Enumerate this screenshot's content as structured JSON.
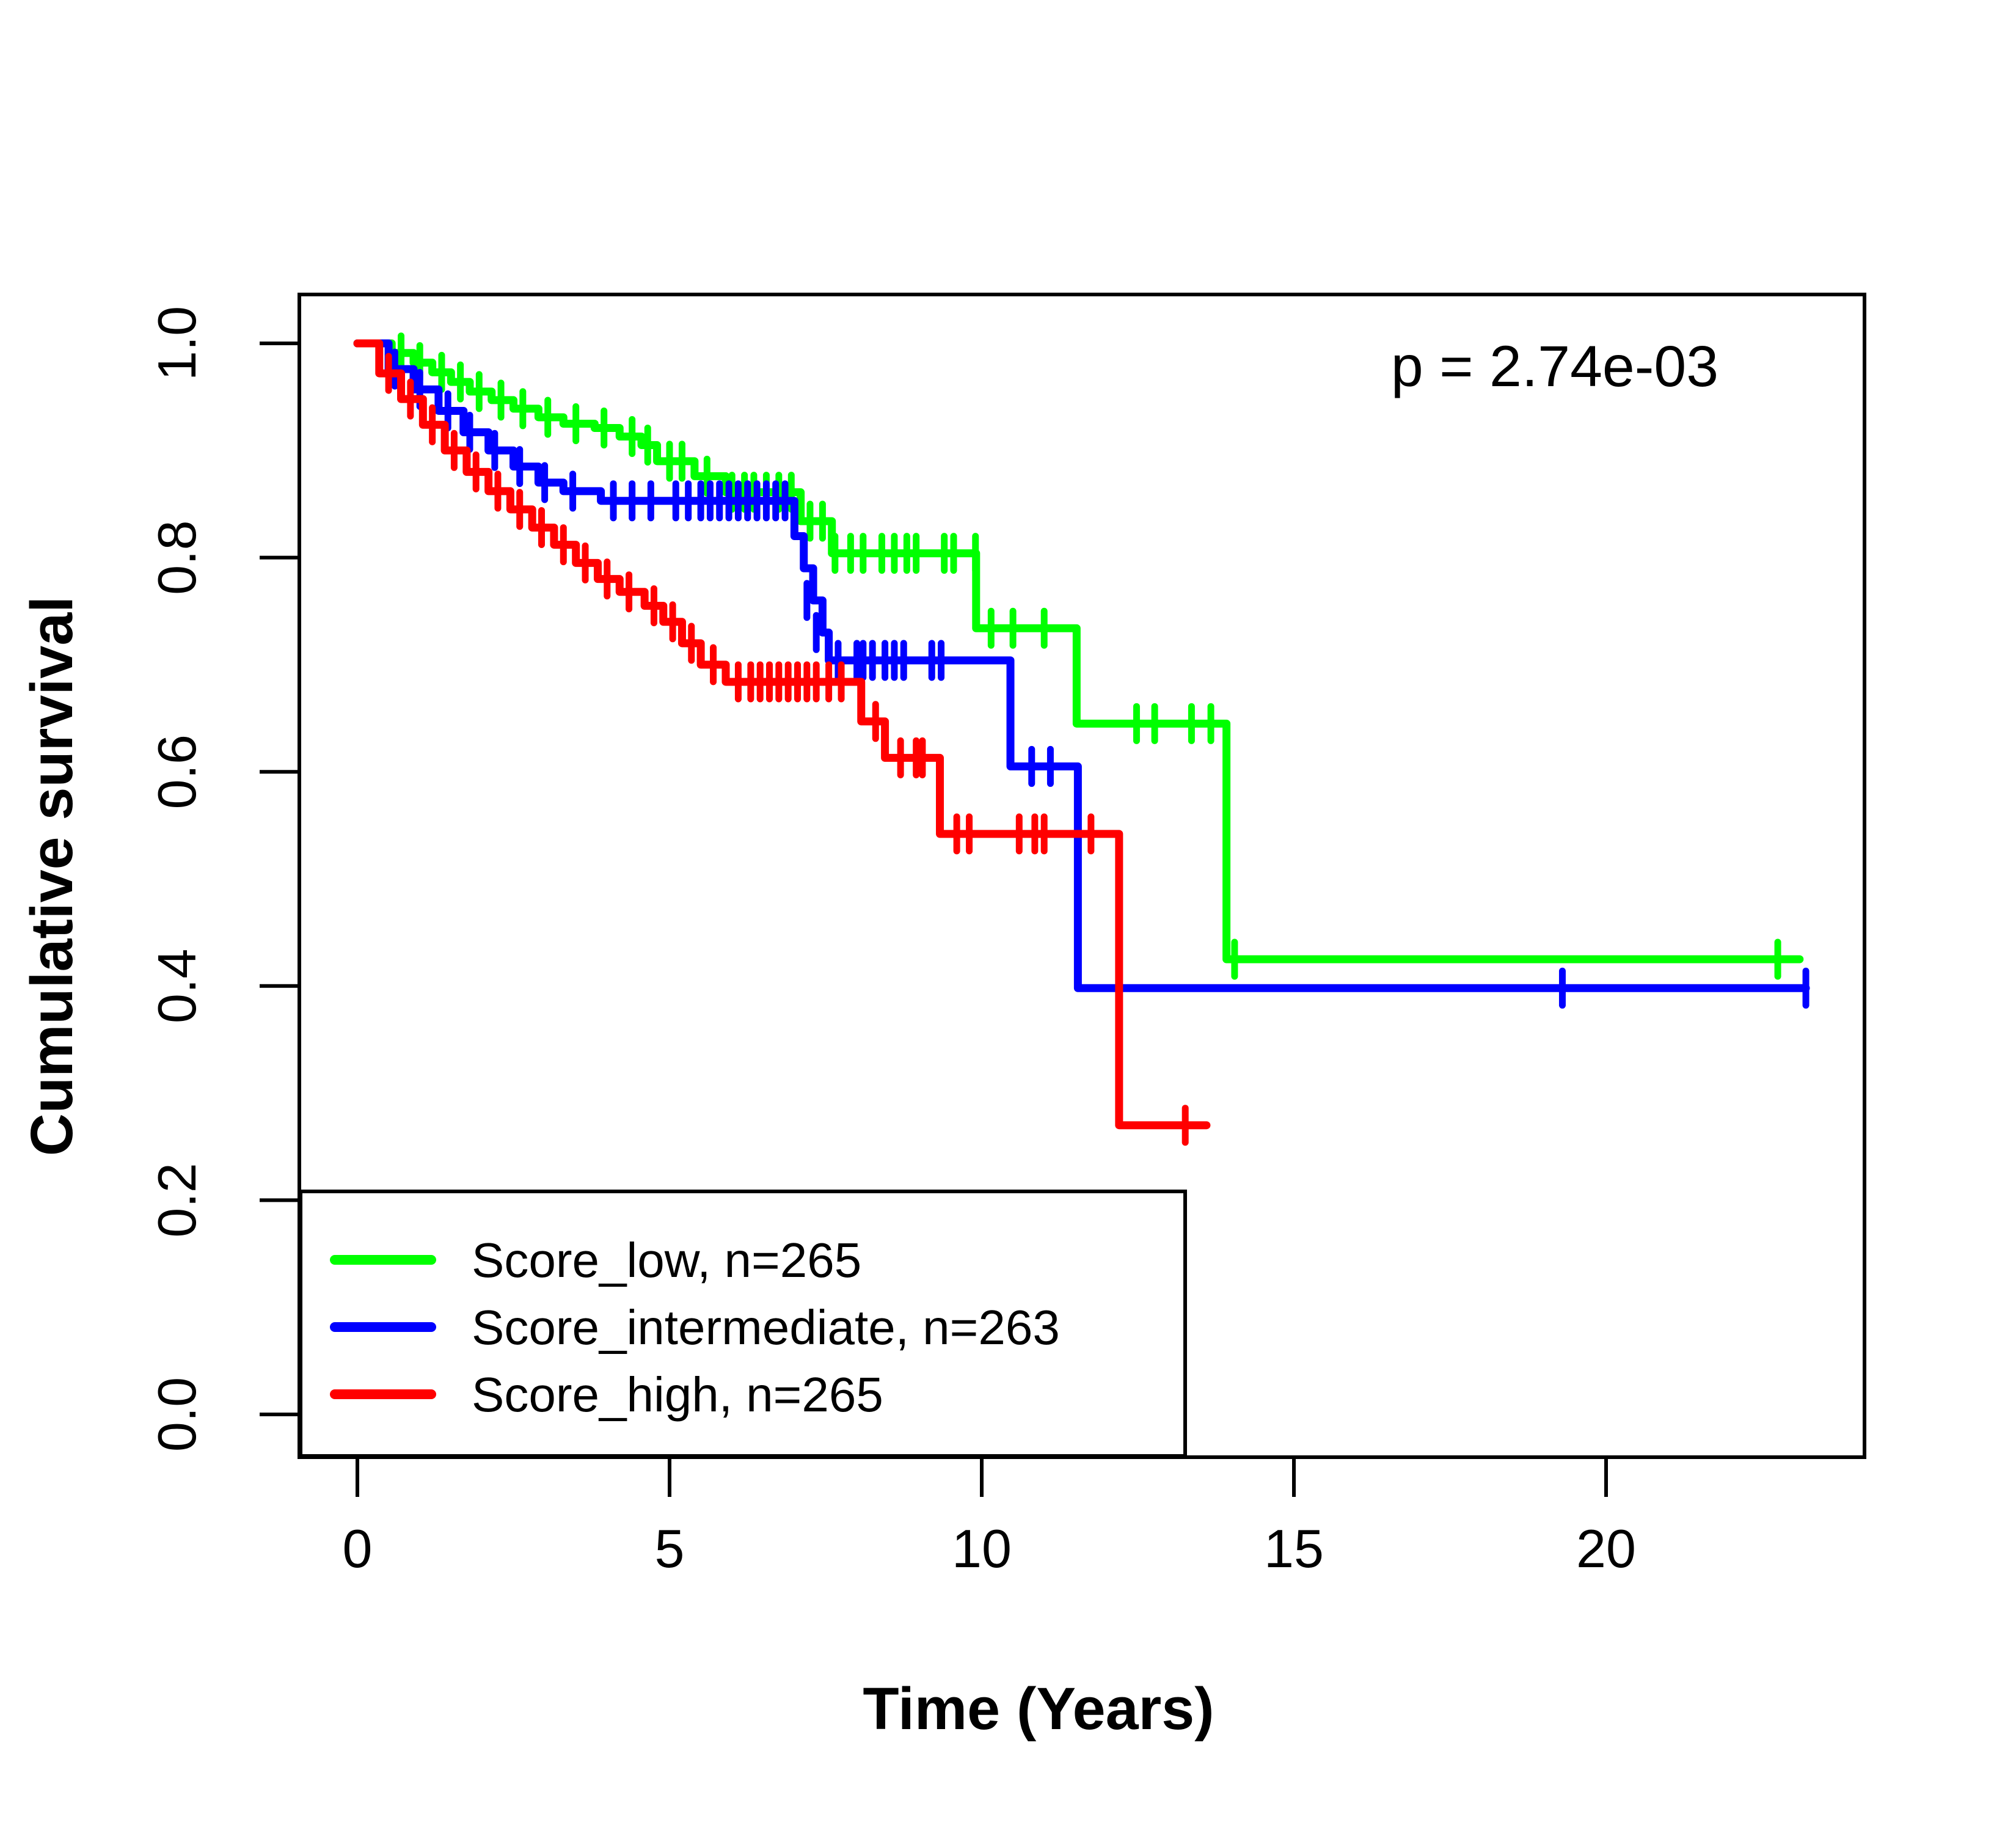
{
  "chart_data": {
    "type": "line",
    "subtype": "kaplan-meier-step",
    "p_value_text": "p = 2.74e-03",
    "xlabel": "Time (Years)",
    "ylabel": "Cumulative survival",
    "x_axis": {
      "ticks": [
        0,
        5,
        10,
        15,
        20
      ],
      "range": [
        0,
        24.1
      ],
      "grid": false
    },
    "y_axis": {
      "tick_labels": [
        "0.0",
        "0.2",
        "0.4",
        "0.6",
        "0.8",
        "1.0"
      ],
      "tick_values": [
        0.0,
        0.2,
        0.4,
        0.6,
        0.8,
        1.0
      ],
      "range": [
        0,
        1
      ],
      "grid": false
    },
    "legend": {
      "position": "bottomleft",
      "entries": [
        {
          "label": "Score_low, n=265",
          "color": "#00FF00"
        },
        {
          "label": "Score_intermediate, n=263",
          "color": "#0000FF"
        },
        {
          "label": "Score_high, n=265",
          "color": "#FF0000"
        }
      ]
    },
    "series": [
      {
        "name": "Score_low",
        "n": 265,
        "color": "#00FF00",
        "steps": [
          [
            0,
            1.0
          ],
          [
            0.55,
            0.991
          ],
          [
            0.9,
            0.982
          ],
          [
            1.2,
            0.973
          ],
          [
            1.5,
            0.964
          ],
          [
            1.8,
            0.955
          ],
          [
            2.15,
            0.947
          ],
          [
            2.5,
            0.939
          ],
          [
            2.9,
            0.931
          ],
          [
            3.3,
            0.925
          ],
          [
            3.8,
            0.921
          ],
          [
            4.2,
            0.913
          ],
          [
            4.55,
            0.905
          ],
          [
            4.8,
            0.89
          ],
          [
            5.4,
            0.876
          ],
          [
            5.9,
            0.861
          ],
          [
            7.1,
            0.834
          ],
          [
            7.6,
            0.804
          ],
          [
            9.91,
            0.734
          ],
          [
            11.52,
            0.645
          ],
          [
            13.92,
            0.425
          ]
        ],
        "end_time": 23.1,
        "end_censor": false,
        "censors": [
          [
            0.7,
            0.991
          ],
          [
            1.0,
            0.982
          ],
          [
            1.35,
            0.973
          ],
          [
            1.65,
            0.964
          ],
          [
            1.95,
            0.955
          ],
          [
            2.3,
            0.947
          ],
          [
            2.65,
            0.939
          ],
          [
            3.05,
            0.931
          ],
          [
            3.5,
            0.925
          ],
          [
            3.95,
            0.921
          ],
          [
            4.4,
            0.913
          ],
          [
            4.65,
            0.905
          ],
          [
            5.0,
            0.89
          ],
          [
            5.2,
            0.89
          ],
          [
            5.6,
            0.876
          ],
          [
            6.0,
            0.861
          ],
          [
            6.2,
            0.861
          ],
          [
            6.35,
            0.861
          ],
          [
            6.55,
            0.861
          ],
          [
            6.75,
            0.861
          ],
          [
            6.95,
            0.861
          ],
          [
            7.25,
            0.834
          ],
          [
            7.45,
            0.834
          ],
          [
            7.65,
            0.804
          ],
          [
            7.9,
            0.804
          ],
          [
            8.1,
            0.804
          ],
          [
            8.4,
            0.804
          ],
          [
            8.6,
            0.804
          ],
          [
            8.8,
            0.804
          ],
          [
            8.95,
            0.804
          ],
          [
            9.4,
            0.804
          ],
          [
            9.55,
            0.804
          ],
          [
            9.9,
            0.804
          ],
          [
            10.15,
            0.734
          ],
          [
            10.5,
            0.734
          ],
          [
            11.0,
            0.734
          ],
          [
            12.48,
            0.645
          ],
          [
            12.77,
            0.645
          ],
          [
            13.36,
            0.645
          ],
          [
            13.67,
            0.645
          ],
          [
            14.05,
            0.425
          ],
          [
            22.75,
            0.425
          ]
        ]
      },
      {
        "name": "Score_intermediate",
        "n": 263,
        "color": "#0000FF",
        "steps": [
          [
            0,
            1.0
          ],
          [
            0.5,
            0.976
          ],
          [
            0.9,
            0.957
          ],
          [
            1.3,
            0.937
          ],
          [
            1.7,
            0.917
          ],
          [
            2.1,
            0.9
          ],
          [
            2.5,
            0.885
          ],
          [
            2.9,
            0.87
          ],
          [
            3.3,
            0.862
          ],
          [
            3.9,
            0.853
          ],
          [
            7.0,
            0.82
          ],
          [
            7.15,
            0.79
          ],
          [
            7.3,
            0.76
          ],
          [
            7.45,
            0.73
          ],
          [
            7.55,
            0.704
          ],
          [
            10.46,
            0.605
          ],
          [
            11.54,
            0.398
          ]
        ],
        "end_time": 23.2,
        "end_censor": true,
        "censors": [
          [
            0.6,
            0.976
          ],
          [
            1.0,
            0.957
          ],
          [
            1.45,
            0.937
          ],
          [
            1.8,
            0.917
          ],
          [
            2.2,
            0.9
          ],
          [
            2.6,
            0.885
          ],
          [
            3.0,
            0.87
          ],
          [
            3.45,
            0.862
          ],
          [
            4.1,
            0.853
          ],
          [
            4.4,
            0.853
          ],
          [
            4.7,
            0.853
          ],
          [
            5.1,
            0.853
          ],
          [
            5.3,
            0.853
          ],
          [
            5.5,
            0.853
          ],
          [
            5.65,
            0.853
          ],
          [
            5.8,
            0.853
          ],
          [
            5.95,
            0.853
          ],
          [
            6.1,
            0.853
          ],
          [
            6.25,
            0.853
          ],
          [
            6.4,
            0.853
          ],
          [
            6.55,
            0.853
          ],
          [
            6.7,
            0.853
          ],
          [
            6.85,
            0.853
          ],
          [
            7.2,
            0.76
          ],
          [
            7.35,
            0.73
          ],
          [
            7.7,
            0.704
          ],
          [
            8.0,
            0.704
          ],
          [
            8.1,
            0.704
          ],
          [
            8.25,
            0.704
          ],
          [
            8.45,
            0.704
          ],
          [
            8.6,
            0.704
          ],
          [
            8.75,
            0.704
          ],
          [
            9.2,
            0.704
          ],
          [
            9.35,
            0.704
          ],
          [
            10.8,
            0.605
          ],
          [
            11.1,
            0.605
          ],
          [
            19.3,
            0.398
          ]
        ]
      },
      {
        "name": "Score_high",
        "n": 265,
        "color": "#FF0000",
        "steps": [
          [
            0,
            1.0
          ],
          [
            0.35,
            0.972
          ],
          [
            0.7,
            0.948
          ],
          [
            1.05,
            0.924
          ],
          [
            1.4,
            0.9
          ],
          [
            1.75,
            0.88
          ],
          [
            2.1,
            0.862
          ],
          [
            2.45,
            0.845
          ],
          [
            2.8,
            0.828
          ],
          [
            3.15,
            0.812
          ],
          [
            3.5,
            0.795
          ],
          [
            3.85,
            0.78
          ],
          [
            4.2,
            0.768
          ],
          [
            4.6,
            0.755
          ],
          [
            4.9,
            0.74
          ],
          [
            5.2,
            0.72
          ],
          [
            5.5,
            0.7
          ],
          [
            5.9,
            0.684
          ],
          [
            8.07,
            0.647
          ],
          [
            8.45,
            0.613
          ],
          [
            9.33,
            0.542
          ],
          [
            12.2,
            0.27
          ]
        ],
        "end_time": 13.6,
        "end_censor": false,
        "censors": [
          [
            0.5,
            0.972
          ],
          [
            0.85,
            0.948
          ],
          [
            1.2,
            0.924
          ],
          [
            1.55,
            0.9
          ],
          [
            1.9,
            0.88
          ],
          [
            2.25,
            0.862
          ],
          [
            2.6,
            0.845
          ],
          [
            2.95,
            0.828
          ],
          [
            3.3,
            0.812
          ],
          [
            3.65,
            0.795
          ],
          [
            4.0,
            0.78
          ],
          [
            4.35,
            0.768
          ],
          [
            4.75,
            0.755
          ],
          [
            5.05,
            0.74
          ],
          [
            5.35,
            0.72
          ],
          [
            5.7,
            0.7
          ],
          [
            6.1,
            0.684
          ],
          [
            6.3,
            0.684
          ],
          [
            6.45,
            0.684
          ],
          [
            6.6,
            0.684
          ],
          [
            6.75,
            0.684
          ],
          [
            6.9,
            0.684
          ],
          [
            7.05,
            0.684
          ],
          [
            7.2,
            0.684
          ],
          [
            7.35,
            0.684
          ],
          [
            7.55,
            0.684
          ],
          [
            7.75,
            0.684
          ],
          [
            8.3,
            0.647
          ],
          [
            8.7,
            0.613
          ],
          [
            8.95,
            0.613
          ],
          [
            9.05,
            0.613
          ],
          [
            9.6,
            0.542
          ],
          [
            9.8,
            0.542
          ],
          [
            10.6,
            0.542
          ],
          [
            10.85,
            0.542
          ],
          [
            11.0,
            0.542
          ],
          [
            11.75,
            0.542
          ],
          [
            13.26,
            0.27
          ]
        ]
      }
    ]
  }
}
